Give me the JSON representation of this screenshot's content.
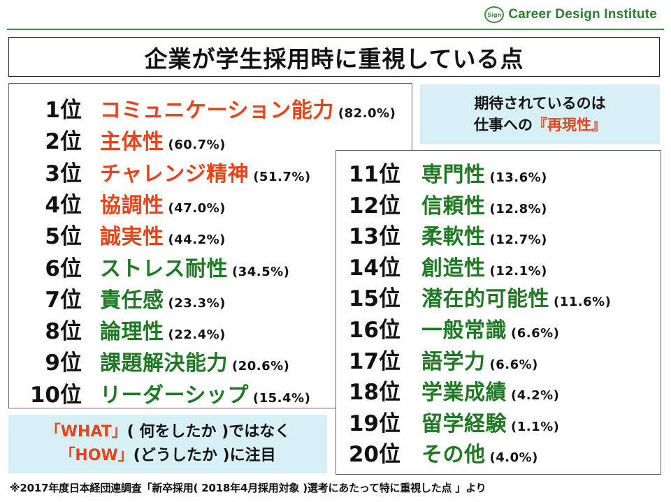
{
  "logo": {
    "badge": "Sign",
    "text": "Career Design Institute"
  },
  "title": "企業が学生採用時に重視している点",
  "colors": {
    "top_red": "#e8441a",
    "green": "#1e7a22",
    "callout_bg": "#d6f0f5"
  },
  "ranking_left": [
    {
      "rank": "1位",
      "item": "コミュニケーション能力",
      "pct": "(82.0%)",
      "color": "#e8441a"
    },
    {
      "rank": "2位",
      "item": "主体性",
      "pct": "(60.7%)",
      "color": "#e8441a"
    },
    {
      "rank": "3位",
      "item": "チャレンジ精神",
      "pct": "(51.7%)",
      "color": "#e8441a"
    },
    {
      "rank": "4位",
      "item": "協調性",
      "pct": "(47.0%)",
      "color": "#e8441a"
    },
    {
      "rank": "5位",
      "item": "誠実性",
      "pct": "(44.2%)",
      "color": "#e8441a"
    },
    {
      "rank": "6位",
      "item": "ストレス耐性",
      "pct": "(34.5%)",
      "color": "#1e7a22"
    },
    {
      "rank": "7位",
      "item": "責任感",
      "pct": "(23.3%)",
      "color": "#1e7a22"
    },
    {
      "rank": "8位",
      "item": "論理性",
      "pct": "(22.4%)",
      "color": "#1e7a22"
    },
    {
      "rank": "9位",
      "item": "課題解決能力",
      "pct": "(20.6%)",
      "color": "#1e7a22"
    },
    {
      "rank": "10位",
      "item": "リーダーシップ",
      "pct": "(15.4%)",
      "color": "#1e7a22"
    }
  ],
  "ranking_right": [
    {
      "rank": "11位",
      "item": "専門性",
      "pct": "(13.6%)",
      "color": "#1e7a22"
    },
    {
      "rank": "12位",
      "item": "信頼性",
      "pct": "(12.8%)",
      "color": "#1e7a22"
    },
    {
      "rank": "13位",
      "item": "柔軟性",
      "pct": "(12.7%)",
      "color": "#1e7a22"
    },
    {
      "rank": "14位",
      "item": "創造性",
      "pct": "(12.1%)",
      "color": "#1e7a22"
    },
    {
      "rank": "15位",
      "item": "潜在的可能性",
      "pct": "(11.6%)",
      "color": "#1e7a22"
    },
    {
      "rank": "16位",
      "item": "一般常識",
      "pct": "(6.6%)",
      "color": "#1e7a22"
    },
    {
      "rank": "17位",
      "item": "語学力",
      "pct": "(6.6%)",
      "color": "#1e7a22"
    },
    {
      "rank": "18位",
      "item": "学業成績",
      "pct": "(4.2%)",
      "color": "#1e7a22"
    },
    {
      "rank": "19位",
      "item": "留学経験",
      "pct": "(1.1%)",
      "color": "#1e7a22"
    },
    {
      "rank": "20位",
      "item": "その他",
      "pct": "(4.0%)",
      "color": "#1e7a22"
    }
  ],
  "callout_top": {
    "line1": "期待されているのは",
    "line2_prefix": "仕事への",
    "line2_emph": "『再現性』"
  },
  "callout_bottom": {
    "line1_a": "「WHAT」",
    "line1_b": "( 何をしたか )ではなく",
    "line2_a": "「HOW」",
    "line2_b": "(どうしたか )に注目"
  },
  "footnote": "※2017年度日本経団連調査「新卒採用( 2018年4月採用対象 )選考にあたって特に重視した点 」より"
}
